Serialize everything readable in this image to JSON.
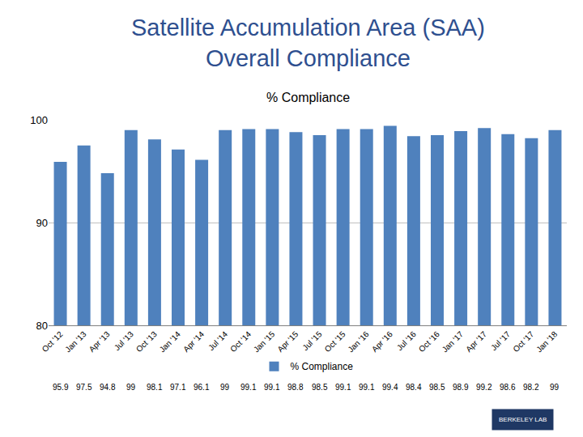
{
  "chart_data": {
    "type": "bar",
    "title": "Satellite Accumulation Area (SAA)\nOverall Compliance",
    "subtitle": "% Compliance",
    "categories": [
      "Oct '12",
      "Jan '13",
      "Apr '13",
      "Jul '13",
      "Oct '13",
      "Jan '14",
      "Apr '14",
      "Jul '14",
      "Oct '14",
      "Jan '15",
      "Apr '15",
      "Jul '15",
      "Oct '15",
      "Jan '16",
      "Apr '16",
      "Jul '16",
      "Oct '16",
      "Jan '17",
      "Apr '17",
      "Jul '17",
      "Oct '17",
      "Jan '18"
    ],
    "series": [
      {
        "name": "% Compliance",
        "color": "#4F81BD",
        "values": [
          95.9,
          97.5,
          94.8,
          99,
          98.1,
          97.1,
          96.1,
          99,
          99.1,
          99.1,
          98.8,
          98.5,
          99.1,
          99.1,
          99.4,
          98.4,
          98.5,
          98.9,
          99.2,
          98.6,
          98.2,
          99
        ]
      }
    ],
    "ylim": [
      80,
      100
    ],
    "yticks": [
      80,
      90,
      100
    ],
    "grid": true,
    "legend": "bottom",
    "data_labels": true,
    "annotations": [
      "BERKELEY LAB"
    ]
  }
}
